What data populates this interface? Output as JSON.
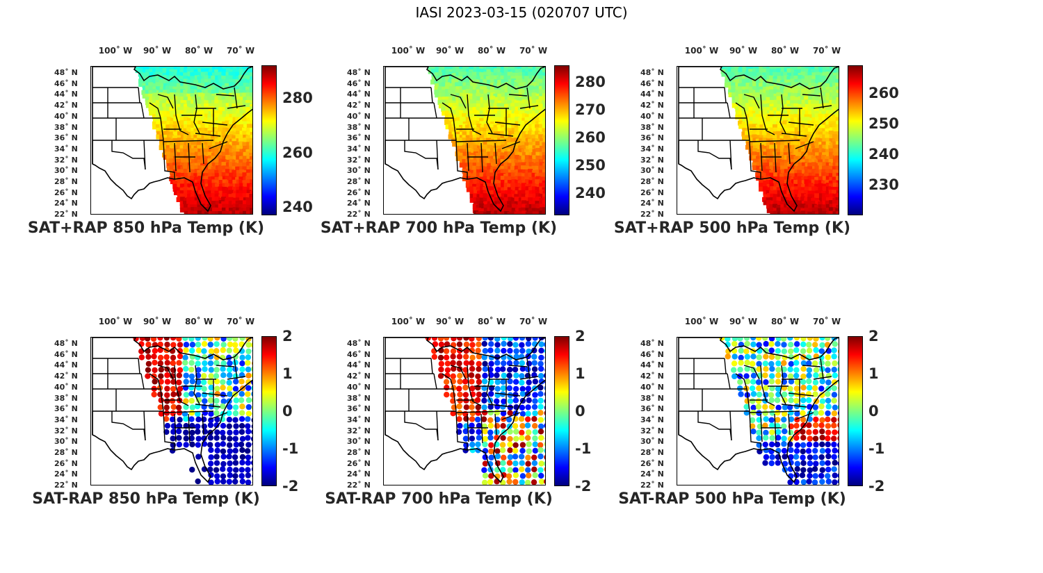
{
  "title": "IASI 2023-03-15 (020707 UTC)",
  "colormap": "jet",
  "lon_labels": [
    "100˚ W",
    "90˚ W",
    "80˚ W",
    "70˚ W"
  ],
  "lat_labels": [
    "48˚ N",
    "46˚ N",
    "44˚ N",
    "42˚ N",
    "40˚ N",
    "38˚ N",
    "36˚ N",
    "34˚ N",
    "32˚ N",
    "30˚ N",
    "28˚ N",
    "26˚ N",
    "24˚ N",
    "22˚ N"
  ],
  "panels": [
    {
      "caption": "SAT+RAP 850 hPa Temp (K)",
      "kind": "temp",
      "clim": [
        237,
        292
      ],
      "ticks": [
        "280",
        "260",
        "240"
      ],
      "tick_values": [
        280,
        260,
        240
      ]
    },
    {
      "caption": "SAT+RAP 700 hPa Temp (K)",
      "kind": "temp",
      "clim": [
        232,
        286
      ],
      "ticks": [
        "280",
        "270",
        "260",
        "250",
        "240"
      ],
      "tick_values": [
        280,
        270,
        260,
        250,
        240
      ]
    },
    {
      "caption": "SAT+RAP 500 hPa Temp (K)",
      "kind": "temp",
      "clim": [
        220,
        269
      ],
      "ticks": [
        "260",
        "250",
        "240",
        "230"
      ],
      "tick_values": [
        260,
        250,
        240,
        230
      ]
    },
    {
      "caption": "SAT-RAP 850 hPa Temp (K)",
      "kind": "diff",
      "clim": [
        -2,
        2
      ],
      "ticks": [
        "2",
        "1",
        "0",
        "-1",
        "-2"
      ],
      "tick_values": [
        2,
        1,
        0,
        -1,
        -2
      ]
    },
    {
      "caption": "SAT-RAP 700 hPa Temp (K)",
      "kind": "diff",
      "clim": [
        -2,
        2
      ],
      "ticks": [
        "2",
        "1",
        "0",
        "-1",
        "-2"
      ],
      "tick_values": [
        2,
        1,
        0,
        -1,
        -2
      ]
    },
    {
      "caption": "SAT-RAP 500 hPa Temp (K)",
      "kind": "diff",
      "clim": [
        -2,
        2
      ],
      "ticks": [
        "2",
        "1",
        "0",
        "-1",
        "-2"
      ],
      "tick_values": [
        2,
        1,
        0,
        -1,
        -2
      ]
    }
  ]
}
